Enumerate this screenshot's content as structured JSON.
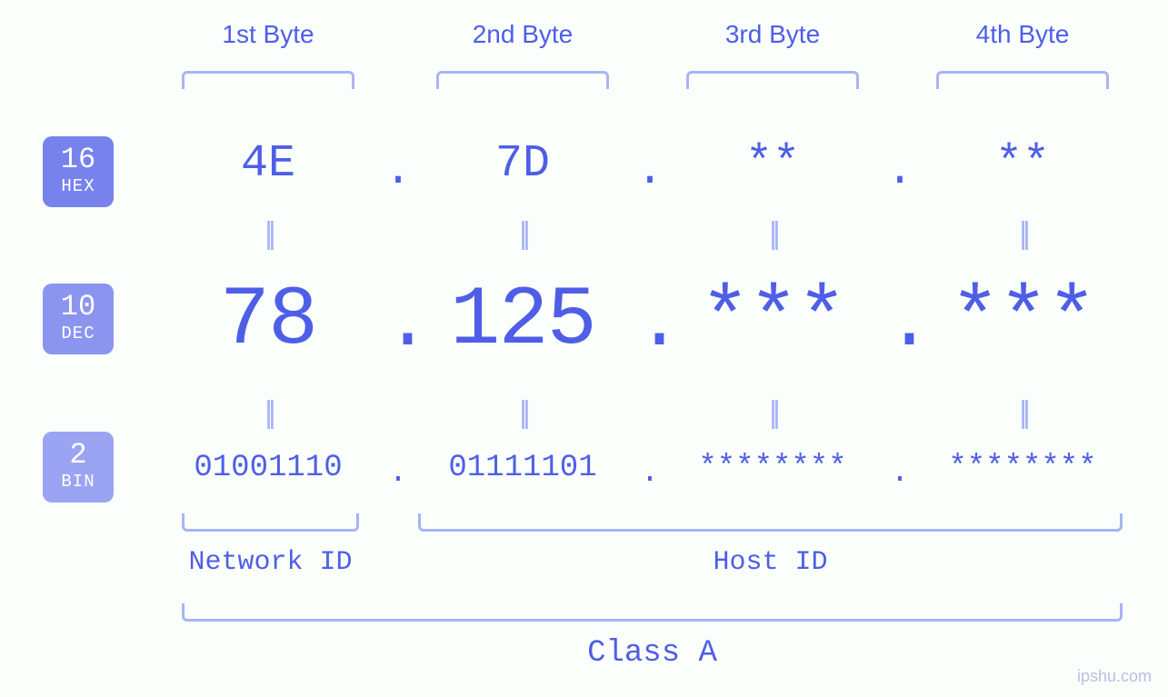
{
  "type": "ip-address-breakdown",
  "colors": {
    "main": "#4f5ee6",
    "light": "#a9b4f5",
    "background": "#fafffc",
    "badge_hex": "#7782ed",
    "badge_dec": "#8b95f0",
    "badge_bin": "#9ba4f3"
  },
  "typography": {
    "mono_family": "Menlo, Consolas, Courier New, monospace",
    "sans_family": "-apple-system, Segoe UI, Arial, sans-serif",
    "byte_label_fontsize": 28,
    "hex_fontsize": 50,
    "dec_fontsize": 92,
    "bin_fontsize": 34,
    "badge_num_fontsize": 32,
    "badge_label_fontsize": 19,
    "section_label_fontsize": 30,
    "class_label_fontsize": 34,
    "watermark_fontsize": 18
  },
  "bases": {
    "hex": {
      "num": "16",
      "label": "HEX"
    },
    "dec": {
      "num": "10",
      "label": "DEC"
    },
    "bin": {
      "num": "2",
      "label": "BIN"
    }
  },
  "byte_labels": [
    "1st Byte",
    "2nd Byte",
    "3rd Byte",
    "4th Byte"
  ],
  "bytes": [
    {
      "hex": "4E",
      "dec": "78",
      "bin": "01001110"
    },
    {
      "hex": "7D",
      "dec": "125",
      "bin": "01111101"
    },
    {
      "hex": "**",
      "dec": "***",
      "bin": "********"
    },
    {
      "hex": "**",
      "dec": "***",
      "bin": "********"
    }
  ],
  "separator": ".",
  "equals_glyph": "||",
  "sections": {
    "network_label": "Network ID",
    "host_label": "Host ID",
    "network_bytes": [
      0
    ],
    "host_bytes": [
      1,
      2,
      3
    ]
  },
  "class_label": "Class A",
  "watermark": "ipshu.com"
}
